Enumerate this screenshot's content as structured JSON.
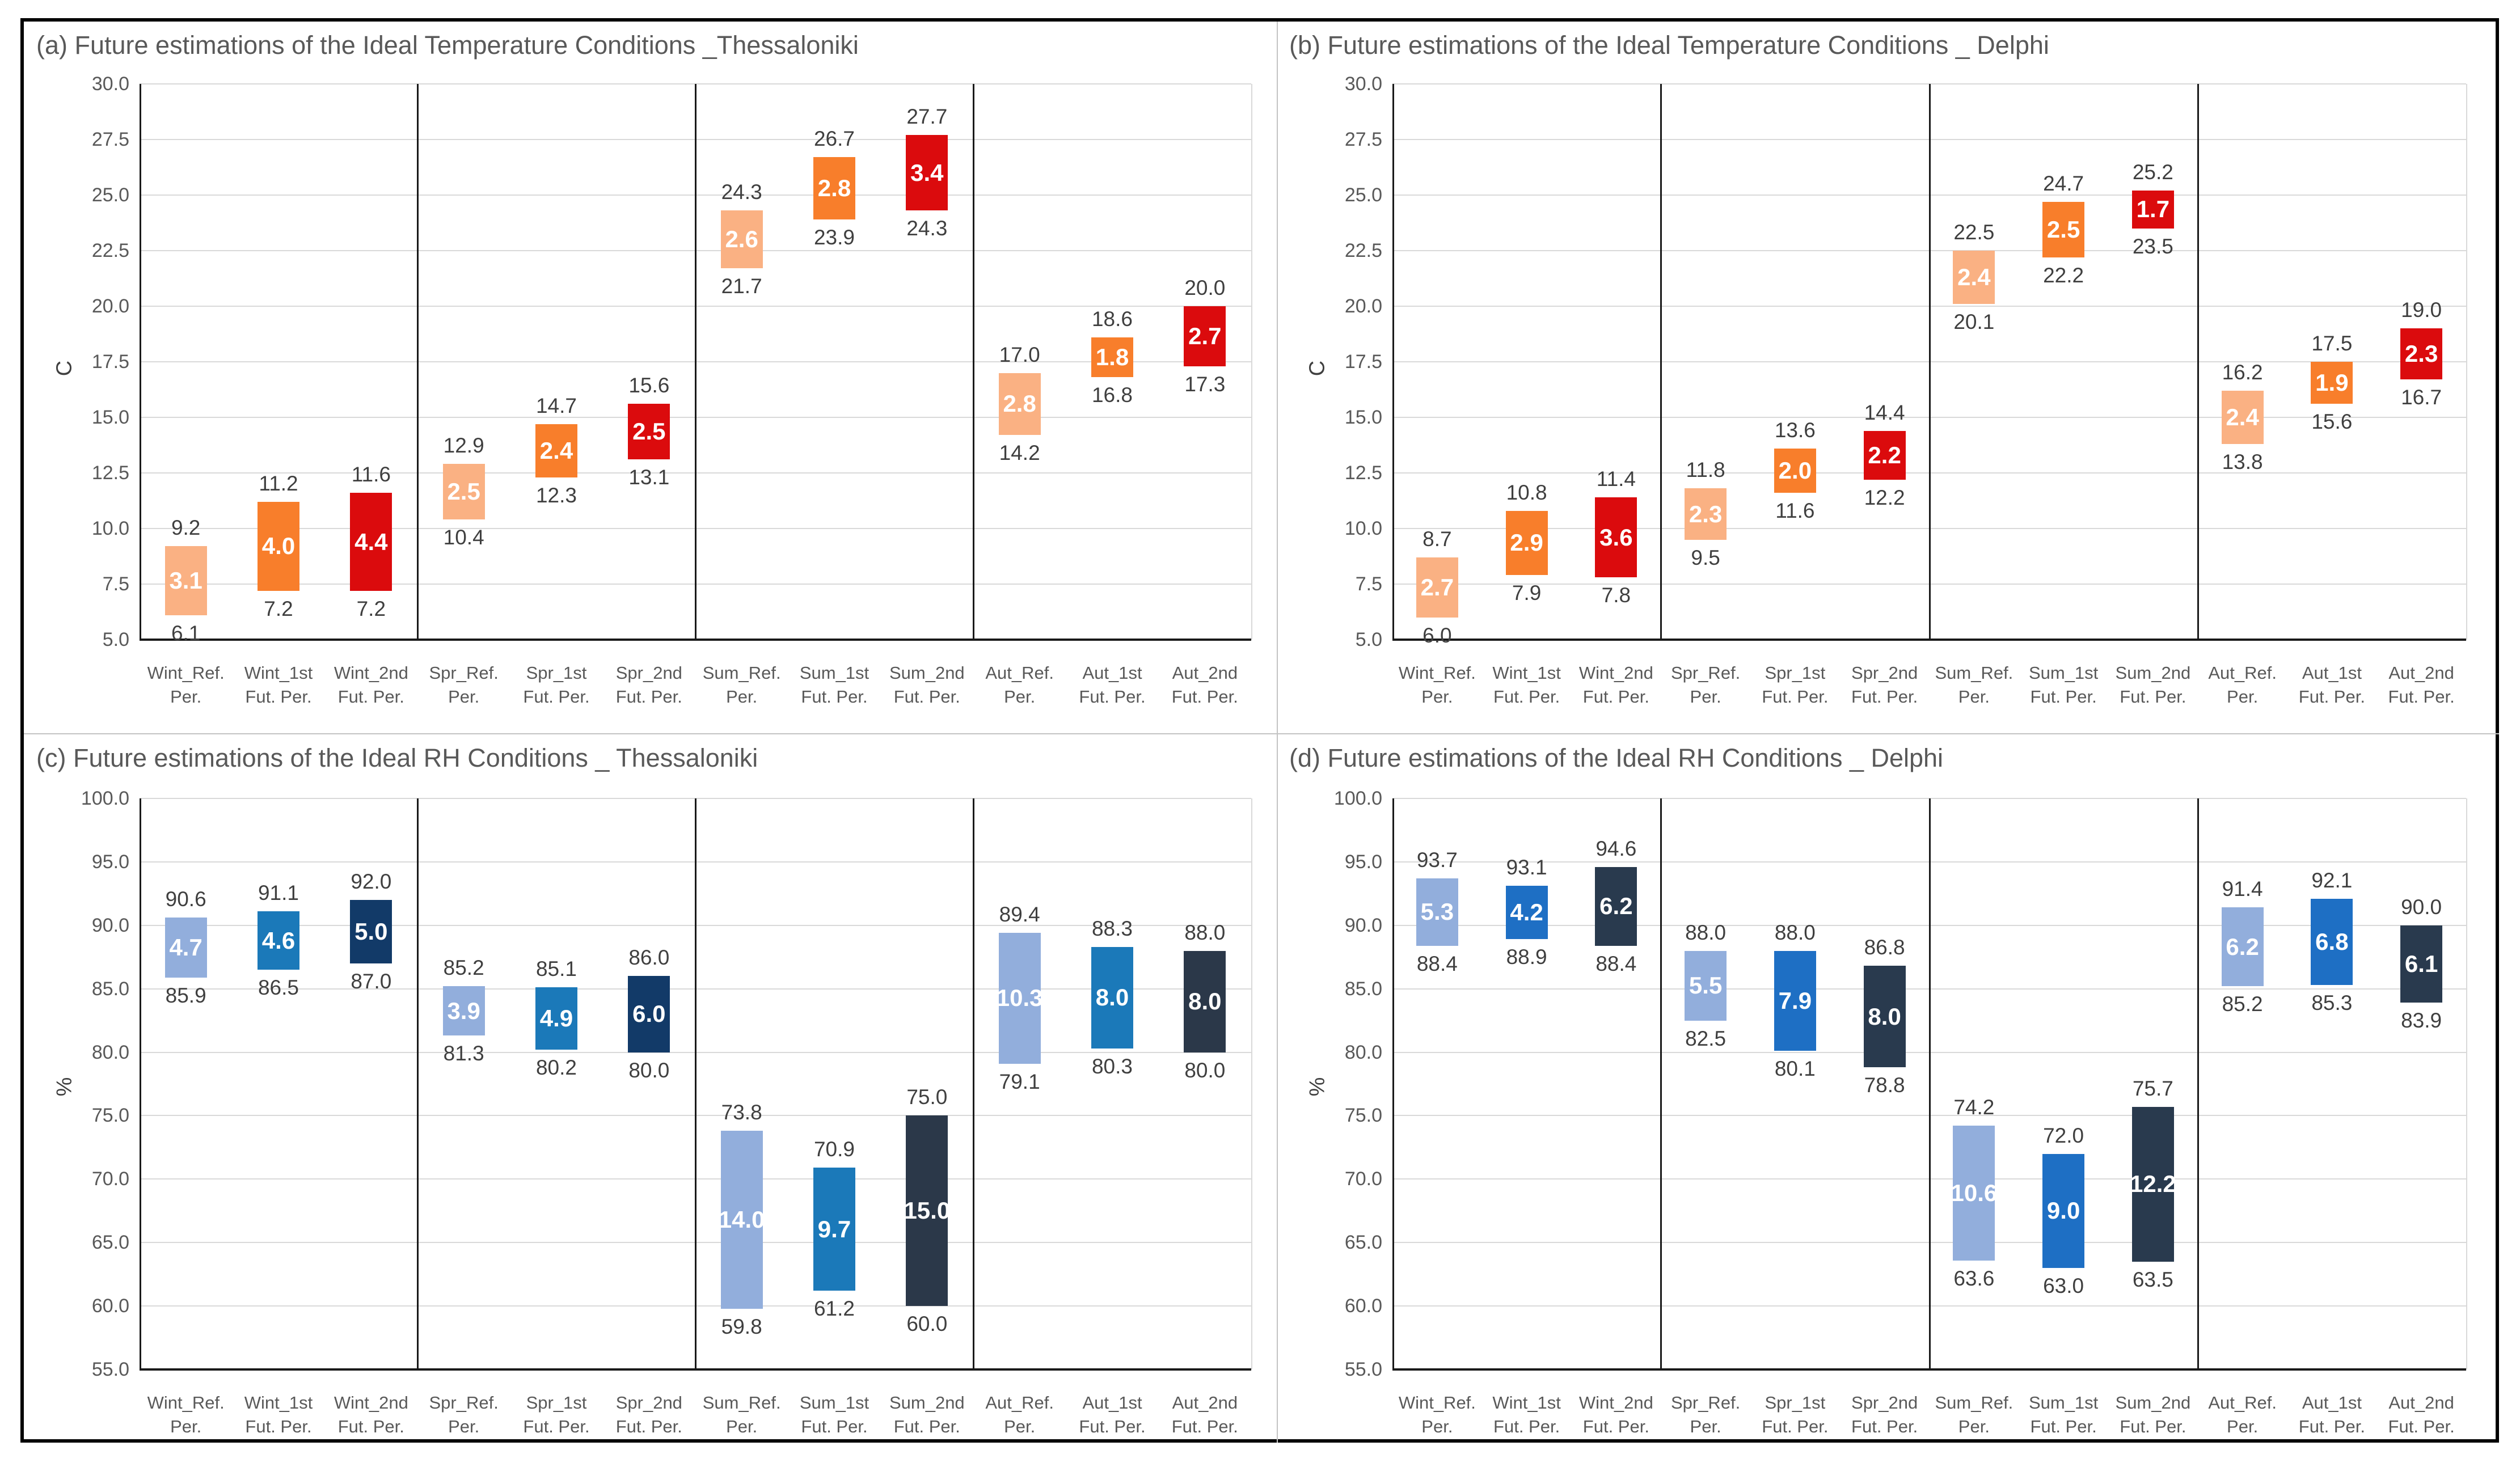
{
  "style": {
    "background": "#FFFFFF",
    "outer_border": "#000000",
    "panel_divider": "#C3C3C3",
    "gridline": "#D9D9D9",
    "axis_line": "#1A1A1A",
    "tick_text": "#595959",
    "title_text": "#595959",
    "value_label_text": "#3F3F3F",
    "range_label_text": "#FFFFFF",
    "temp_ref": "#FAB183",
    "temp_fut1": "#F87E2B",
    "temp_fut2": "#DB0B0D",
    "rh_ref": "#92AEDC",
    "rh_fut1_thessaloniki": "#1B79B9",
    "rh_fut1_delphi": "#1E6FC4",
    "rh_fut2_navy": "#123A68",
    "rh_fut2_slate": "#2B3849"
  },
  "chart_data": [
    {
      "id": "a",
      "type": "bar",
      "subtype": "floating-range-bars",
      "title": "(a) Future estimations of the Ideal Temperature Conditions _Thessaloniki",
      "ylabel": "C",
      "ymin": 5.0,
      "ymax": 30.0,
      "ystep": 2.5,
      "grid": true,
      "legend": "none",
      "categories": [
        [
          "Wint_Ref.",
          "Per."
        ],
        [
          "Wint_1st",
          "Fut. Per."
        ],
        [
          "Wint_2nd",
          "Fut. Per."
        ],
        [
          "Spr_Ref.",
          "Per."
        ],
        [
          "Spr_1st",
          "Fut. Per."
        ],
        [
          "Spr_2nd",
          "Fut. Per."
        ],
        [
          "Sum_Ref.",
          "Per."
        ],
        [
          "Sum_1st",
          "Fut. Per."
        ],
        [
          "Sum_2nd",
          "Fut. Per."
        ],
        [
          "Aut_Ref.",
          "Per."
        ],
        [
          "Aut_1st",
          "Fut. Per."
        ],
        [
          "Aut_2nd",
          "Fut. Per."
        ]
      ],
      "bars": [
        {
          "low": 6.1,
          "high": 9.2,
          "range": "3.1",
          "color": "#FAB183"
        },
        {
          "low": 7.2,
          "high": 11.2,
          "range": "4.0",
          "color": "#F87E2B"
        },
        {
          "low": 7.2,
          "high": 11.6,
          "range": "4.4",
          "color": "#DB0B0D"
        },
        {
          "low": 10.4,
          "high": 12.9,
          "range": "2.5",
          "color": "#FAB183"
        },
        {
          "low": 12.3,
          "high": 14.7,
          "range": "2.4",
          "color": "#F87E2B"
        },
        {
          "low": 13.1,
          "high": 15.6,
          "range": "2.5",
          "color": "#DB0B0D"
        },
        {
          "low": 21.7,
          "high": 24.3,
          "range": "2.6",
          "color": "#FAB183"
        },
        {
          "low": 23.9,
          "high": 26.7,
          "range": "2.8",
          "color": "#F87E2B"
        },
        {
          "low": 24.3,
          "high": 27.7,
          "range": "3.4",
          "color": "#DB0B0D"
        },
        {
          "low": 14.2,
          "high": 17.0,
          "range": "2.8",
          "color": "#FAB183"
        },
        {
          "low": 16.8,
          "high": 18.6,
          "range": "1.8",
          "color": "#F87E2B"
        },
        {
          "low": 17.3,
          "high": 20.0,
          "range": "2.7",
          "color": "#DB0B0D"
        }
      ]
    },
    {
      "id": "b",
      "type": "bar",
      "subtype": "floating-range-bars",
      "title": "(b) Future estimations of the Ideal Temperature Conditions _ Delphi",
      "ylabel": "C",
      "ymin": 5.0,
      "ymax": 30.0,
      "ystep": 2.5,
      "grid": true,
      "legend": "none",
      "categories": [
        [
          "Wint_Ref.",
          "Per."
        ],
        [
          "Wint_1st",
          "Fut. Per."
        ],
        [
          "Wint_2nd",
          "Fut. Per."
        ],
        [
          "Spr_Ref.",
          "Per."
        ],
        [
          "Spr_1st",
          "Fut. Per."
        ],
        [
          "Spr_2nd",
          "Fut. Per."
        ],
        [
          "Sum_Ref.",
          "Per."
        ],
        [
          "Sum_1st",
          "Fut. Per."
        ],
        [
          "Sum_2nd",
          "Fut. Per."
        ],
        [
          "Aut_Ref.",
          "Per."
        ],
        [
          "Aut_1st",
          "Fut. Per."
        ],
        [
          "Aut_2nd",
          "Fut. Per."
        ]
      ],
      "bars": [
        {
          "low": 6.0,
          "high": 8.7,
          "range": "2.7",
          "color": "#FAB183"
        },
        {
          "low": 7.9,
          "high": 10.8,
          "range": "2.9",
          "color": "#F87E2B"
        },
        {
          "low": 7.8,
          "high": 11.4,
          "range": "3.6",
          "color": "#DB0B0D"
        },
        {
          "low": 9.5,
          "high": 11.8,
          "range": "2.3",
          "color": "#FAB183"
        },
        {
          "low": 11.6,
          "high": 13.6,
          "range": "2.0",
          "color": "#F87E2B"
        },
        {
          "low": 12.2,
          "high": 14.4,
          "range": "2.2",
          "color": "#DB0B0D"
        },
        {
          "low": 20.1,
          "high": 22.5,
          "range": "2.4",
          "color": "#FAB183"
        },
        {
          "low": 22.2,
          "high": 24.7,
          "range": "2.5",
          "color": "#F87E2B"
        },
        {
          "low": 23.5,
          "high": 25.2,
          "range": "1.7",
          "color": "#DB0B0D"
        },
        {
          "low": 13.8,
          "high": 16.2,
          "range": "2.4",
          "color": "#FAB183"
        },
        {
          "low": 15.6,
          "high": 17.5,
          "range": "1.9",
          "color": "#F87E2B"
        },
        {
          "low": 16.7,
          "high": 19.0,
          "range": "2.3",
          "color": "#DB0B0D"
        }
      ]
    },
    {
      "id": "c",
      "type": "bar",
      "subtype": "floating-range-bars",
      "title": "(c) Future estimations of the Ideal RH Conditions _ Thessaloniki",
      "ylabel": "%",
      "ymin": 55.0,
      "ymax": 100.0,
      "ystep": 5.0,
      "grid": true,
      "legend": "none",
      "categories": [
        [
          "Wint_Ref.",
          "Per."
        ],
        [
          "Wint_1st",
          "Fut. Per."
        ],
        [
          "Wint_2nd",
          "Fut. Per."
        ],
        [
          "Spr_Ref.",
          "Per."
        ],
        [
          "Spr_1st",
          "Fut. Per."
        ],
        [
          "Spr_2nd",
          "Fut. Per."
        ],
        [
          "Sum_Ref.",
          "Per."
        ],
        [
          "Sum_1st",
          "Fut. Per."
        ],
        [
          "Sum_2nd",
          "Fut. Per."
        ],
        [
          "Aut_Ref.",
          "Per."
        ],
        [
          "Aut_1st",
          "Fut. Per."
        ],
        [
          "Aut_2nd",
          "Fut. Per."
        ]
      ],
      "bars": [
        {
          "low": 85.9,
          "high": 90.6,
          "range": "4.7",
          "color": "#92AEDC"
        },
        {
          "low": 86.5,
          "high": 91.1,
          "range": "4.6",
          "color": "#1B79B9"
        },
        {
          "low": 87.0,
          "high": 92.0,
          "range": "5.0",
          "color": "#123A68"
        },
        {
          "low": 81.3,
          "high": 85.2,
          "range": "3.9",
          "color": "#92AEDC"
        },
        {
          "low": 80.2,
          "high": 85.1,
          "range": "4.9",
          "color": "#1B79B9"
        },
        {
          "low": 80.0,
          "high": 86.0,
          "range": "6.0",
          "color": "#123A68"
        },
        {
          "low": 59.8,
          "high": 73.8,
          "range": "14.0",
          "color": "#92AEDC"
        },
        {
          "low": 61.2,
          "high": 70.9,
          "range": "9.7",
          "color": "#1B79B9"
        },
        {
          "low": 60.0,
          "high": 75.0,
          "range": "15.0",
          "color": "#2B3849"
        },
        {
          "low": 79.1,
          "high": 89.4,
          "range": "10.3",
          "color": "#92AEDC"
        },
        {
          "low": 80.3,
          "high": 88.3,
          "range": "8.0",
          "color": "#1B79B9"
        },
        {
          "low": 80.0,
          "high": 88.0,
          "range": "8.0",
          "color": "#2B3849"
        }
      ]
    },
    {
      "id": "d",
      "type": "bar",
      "subtype": "floating-range-bars",
      "title": "(d) Future estimations of the Ideal RH Conditions _ Delphi",
      "ylabel": "%",
      "ymin": 55.0,
      "ymax": 100.0,
      "ystep": 5.0,
      "grid": true,
      "legend": "none",
      "categories": [
        [
          "Wint_Ref.",
          "Per."
        ],
        [
          "Wint_1st",
          "Fut. Per."
        ],
        [
          "Wint_2nd",
          "Fut. Per."
        ],
        [
          "Spr_Ref.",
          "Per."
        ],
        [
          "Spr_1st",
          "Fut. Per."
        ],
        [
          "Spr_2nd",
          "Fut. Per."
        ],
        [
          "Sum_Ref.",
          "Per."
        ],
        [
          "Sum_1st",
          "Fut. Per."
        ],
        [
          "Sum_2nd",
          "Fut. Per."
        ],
        [
          "Aut_Ref.",
          "Per."
        ],
        [
          "Aut_1st",
          "Fut. Per."
        ],
        [
          "Aut_2nd",
          "Fut. Per."
        ]
      ],
      "bars": [
        {
          "low": 88.4,
          "high": 93.7,
          "range": "5.3",
          "color": "#92AEDC"
        },
        {
          "low": 88.9,
          "high": 93.1,
          "range": "4.2",
          "color": "#1E6FC4"
        },
        {
          "low": 88.4,
          "high": 94.6,
          "range": "6.2",
          "color": "#293A4E"
        },
        {
          "low": 82.5,
          "high": 88.0,
          "range": "5.5",
          "color": "#92AEDC"
        },
        {
          "low": 80.1,
          "high": 88.0,
          "range": "7.9",
          "color": "#1E6FC4"
        },
        {
          "low": 78.8,
          "high": 86.8,
          "range": "8.0",
          "color": "#293A4E"
        },
        {
          "low": 63.6,
          "high": 74.2,
          "range": "10.6",
          "color": "#92AEDC"
        },
        {
          "low": 63.0,
          "high": 72.0,
          "range": "9.0",
          "color": "#1E6FC4"
        },
        {
          "low": 63.5,
          "high": 75.7,
          "range": "12.2",
          "color": "#293A4E"
        },
        {
          "low": 85.2,
          "high": 91.4,
          "range": "6.2",
          "color": "#92AEDC"
        },
        {
          "low": 85.3,
          "high": 92.1,
          "range": "6.8",
          "color": "#1E6FC4"
        },
        {
          "low": 83.9,
          "high": 90.0,
          "range": "6.1",
          "color": "#293A4E"
        }
      ]
    }
  ]
}
